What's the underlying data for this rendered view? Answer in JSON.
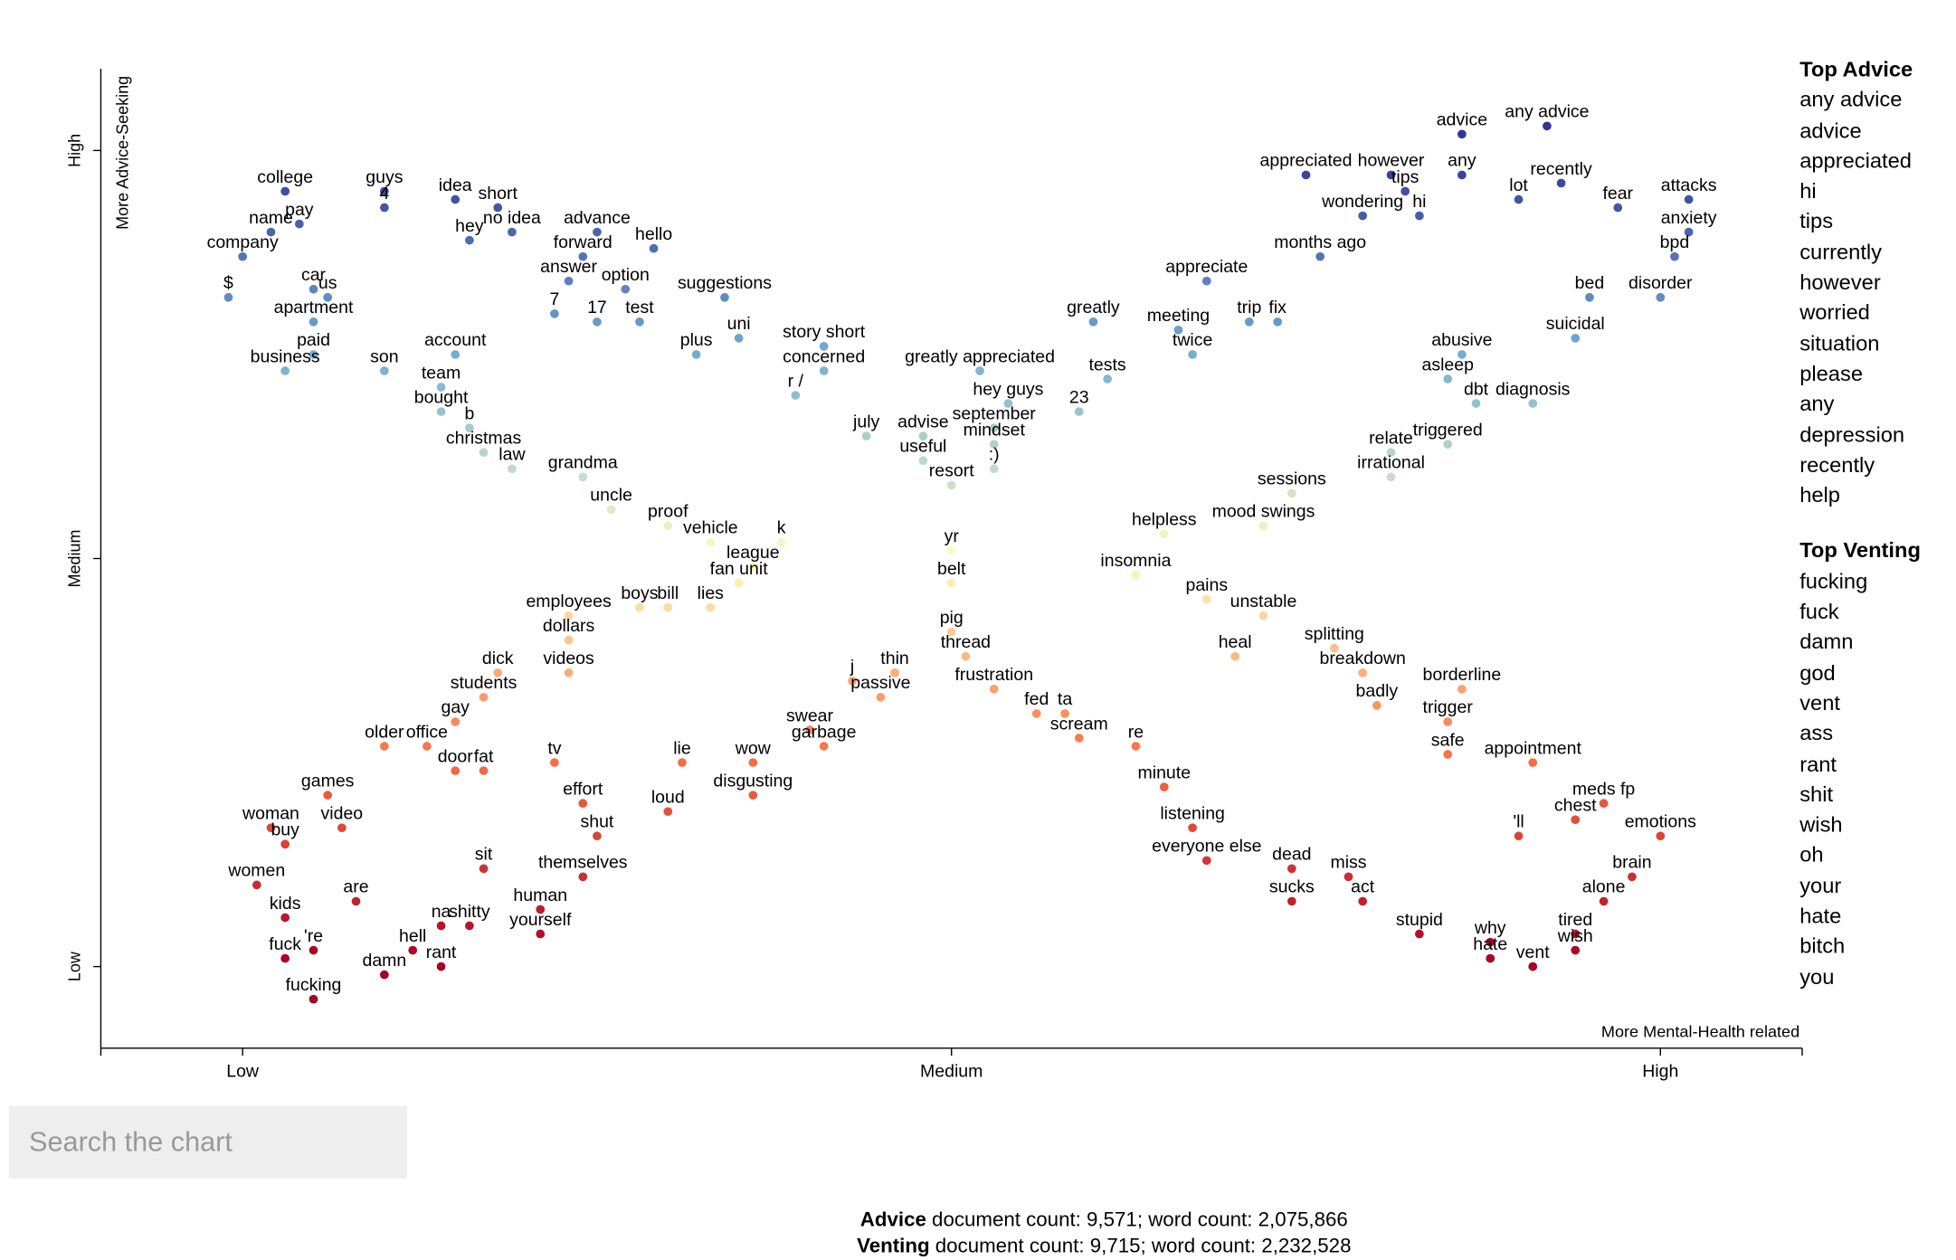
{
  "chart_data": {
    "type": "scatter",
    "y_label": "More Advice-Seeking",
    "x_label": "More Mental-Health related",
    "xlim": [
      -0.1,
      1.1
    ],
    "ylim": [
      -0.1,
      1.1
    ],
    "xticks": [
      {
        "value": 0,
        "label": "Low"
      },
      {
        "value": 0.5,
        "label": "Medium"
      },
      {
        "value": 1,
        "label": "High"
      }
    ],
    "yticks": [
      {
        "value": 0,
        "label": "Low"
      },
      {
        "value": 0.5,
        "label": "Medium"
      },
      {
        "value": 1,
        "label": "High"
      }
    ],
    "colors": [
      "#a50026",
      "#f46d43",
      "#ffffbf",
      "#74add1",
      "#313695"
    ],
    "points": [
      {
        "label": "college",
        "x": 0.03,
        "y": 0.95
      },
      {
        "label": "guys",
        "x": 0.1,
        "y": 0.95
      },
      {
        "label": "4",
        "x": 0.1,
        "y": 0.93
      },
      {
        "label": "idea",
        "x": 0.15,
        "y": 0.94
      },
      {
        "label": "short",
        "x": 0.18,
        "y": 0.93
      },
      {
        "label": "name",
        "x": 0.02,
        "y": 0.9
      },
      {
        "label": "pay",
        "x": 0.04,
        "y": 0.91
      },
      {
        "label": "no idea",
        "x": 0.19,
        "y": 0.9
      },
      {
        "label": "hey",
        "x": 0.16,
        "y": 0.89
      },
      {
        "label": "advance",
        "x": 0.25,
        "y": 0.9
      },
      {
        "label": "hello",
        "x": 0.29,
        "y": 0.88
      },
      {
        "label": "company",
        "x": 0.0,
        "y": 0.87
      },
      {
        "label": "forward",
        "x": 0.24,
        "y": 0.87
      },
      {
        "label": "$",
        "x": -0.01,
        "y": 0.82
      },
      {
        "label": "car",
        "x": 0.05,
        "y": 0.83
      },
      {
        "label": "us",
        "x": 0.06,
        "y": 0.82
      },
      {
        "label": "answer",
        "x": 0.23,
        "y": 0.84
      },
      {
        "label": "option",
        "x": 0.27,
        "y": 0.83
      },
      {
        "label": "suggestions",
        "x": 0.34,
        "y": 0.82
      },
      {
        "label": "7",
        "x": 0.22,
        "y": 0.8
      },
      {
        "label": "17",
        "x": 0.25,
        "y": 0.79
      },
      {
        "label": "test",
        "x": 0.28,
        "y": 0.79
      },
      {
        "label": "apartment",
        "x": 0.05,
        "y": 0.79
      },
      {
        "label": "paid",
        "x": 0.05,
        "y": 0.75
      },
      {
        "label": "account",
        "x": 0.15,
        "y": 0.75
      },
      {
        "label": "plus",
        "x": 0.32,
        "y": 0.75
      },
      {
        "label": "uni",
        "x": 0.35,
        "y": 0.77
      },
      {
        "label": "story short",
        "x": 0.41,
        "y": 0.76
      },
      {
        "label": "business",
        "x": 0.03,
        "y": 0.73
      },
      {
        "label": "son",
        "x": 0.1,
        "y": 0.73
      },
      {
        "label": "concerned",
        "x": 0.41,
        "y": 0.73
      },
      {
        "label": "team",
        "x": 0.14,
        "y": 0.71
      },
      {
        "label": "bought",
        "x": 0.14,
        "y": 0.68
      },
      {
        "label": "r /",
        "x": 0.39,
        "y": 0.7
      },
      {
        "label": "b",
        "x": 0.16,
        "y": 0.66
      },
      {
        "label": "christmas",
        "x": 0.17,
        "y": 0.63
      },
      {
        "label": "law",
        "x": 0.19,
        "y": 0.61
      },
      {
        "label": "grandma",
        "x": 0.24,
        "y": 0.6
      },
      {
        "label": "july",
        "x": 0.44,
        "y": 0.65
      },
      {
        "label": "advise",
        "x": 0.48,
        "y": 0.65
      },
      {
        "label": "useful",
        "x": 0.48,
        "y": 0.62
      },
      {
        "label": "uncle",
        "x": 0.26,
        "y": 0.56
      },
      {
        "label": "resort",
        "x": 0.5,
        "y": 0.59
      },
      {
        "label": "proof",
        "x": 0.3,
        "y": 0.54
      },
      {
        "label": "vehicle",
        "x": 0.33,
        "y": 0.52
      },
      {
        "label": "k",
        "x": 0.38,
        "y": 0.52
      },
      {
        "label": "yr",
        "x": 0.5,
        "y": 0.51
      },
      {
        "label": "league",
        "x": 0.36,
        "y": 0.49
      },
      {
        "label": "fan unit",
        "x": 0.35,
        "y": 0.47
      },
      {
        "label": "belt",
        "x": 0.5,
        "y": 0.47
      },
      {
        "label": "advice",
        "x": 0.86,
        "y": 1.02
      },
      {
        "label": "any advice",
        "x": 0.92,
        "y": 1.03
      },
      {
        "label": "appreciated",
        "x": 0.75,
        "y": 0.97
      },
      {
        "label": "however",
        "x": 0.81,
        "y": 0.97
      },
      {
        "label": "any",
        "x": 0.86,
        "y": 0.97
      },
      {
        "label": "recently",
        "x": 0.93,
        "y": 0.96
      },
      {
        "label": "tips",
        "x": 0.82,
        "y": 0.95
      },
      {
        "label": "lot",
        "x": 0.9,
        "y": 0.94
      },
      {
        "label": "attacks",
        "x": 1.02,
        "y": 0.94
      },
      {
        "label": "fear",
        "x": 0.97,
        "y": 0.93
      },
      {
        "label": "wondering",
        "x": 0.79,
        "y": 0.92
      },
      {
        "label": "hi",
        "x": 0.83,
        "y": 0.92
      },
      {
        "label": "anxiety",
        "x": 1.02,
        "y": 0.9
      },
      {
        "label": "months ago",
        "x": 0.76,
        "y": 0.87
      },
      {
        "label": "bpd",
        "x": 1.01,
        "y": 0.87
      },
      {
        "label": "appreciate",
        "x": 0.68,
        "y": 0.84
      },
      {
        "label": "disorder",
        "x": 1.0,
        "y": 0.82
      },
      {
        "label": "bed",
        "x": 0.95,
        "y": 0.82
      },
      {
        "label": "trip",
        "x": 0.71,
        "y": 0.79
      },
      {
        "label": "fix",
        "x": 0.73,
        "y": 0.79
      },
      {
        "label": "greatly",
        "x": 0.6,
        "y": 0.79
      },
      {
        "label": "meeting",
        "x": 0.66,
        "y": 0.78
      },
      {
        "label": "twice",
        "x": 0.67,
        "y": 0.75
      },
      {
        "label": "suicidal",
        "x": 0.94,
        "y": 0.77
      },
      {
        "label": "abusive",
        "x": 0.86,
        "y": 0.75
      },
      {
        "label": "greatly appreciated",
        "x": 0.52,
        "y": 0.73
      },
      {
        "label": "tests",
        "x": 0.61,
        "y": 0.72
      },
      {
        "label": "asleep",
        "x": 0.85,
        "y": 0.72
      },
      {
        "label": "hey guys",
        "x": 0.54,
        "y": 0.69
      },
      {
        "label": "dbt",
        "x": 0.87,
        "y": 0.69
      },
      {
        "label": "diagnosis",
        "x": 0.91,
        "y": 0.69
      },
      {
        "label": "september",
        "x": 0.53,
        "y": 0.66
      },
      {
        "label": "23",
        "x": 0.59,
        "y": 0.68
      },
      {
        "label": "mindset",
        "x": 0.53,
        "y": 0.64
      },
      {
        "label": "triggered",
        "x": 0.85,
        "y": 0.64
      },
      {
        "label": "relate",
        "x": 0.81,
        "y": 0.63
      },
      {
        "label": ":)",
        "x": 0.53,
        "y": 0.61
      },
      {
        "label": "irrational",
        "x": 0.81,
        "y": 0.6
      },
      {
        "label": "sessions",
        "x": 0.74,
        "y": 0.58
      },
      {
        "label": "mood swings",
        "x": 0.72,
        "y": 0.54
      },
      {
        "label": "helpless",
        "x": 0.65,
        "y": 0.53
      },
      {
        "label": "employees",
        "x": 0.23,
        "y": 0.43
      },
      {
        "label": "boys",
        "x": 0.28,
        "y": 0.44
      },
      {
        "label": "bill",
        "x": 0.3,
        "y": 0.44
      },
      {
        "label": "lies",
        "x": 0.33,
        "y": 0.44
      },
      {
        "label": "dollars",
        "x": 0.23,
        "y": 0.4
      },
      {
        "label": "videos",
        "x": 0.23,
        "y": 0.36
      },
      {
        "label": "dick",
        "x": 0.18,
        "y": 0.36
      },
      {
        "label": "j",
        "x": 0.43,
        "y": 0.35
      },
      {
        "label": "thin",
        "x": 0.46,
        "y": 0.36
      },
      {
        "label": "students",
        "x": 0.17,
        "y": 0.33
      },
      {
        "label": "passive",
        "x": 0.45,
        "y": 0.33
      },
      {
        "label": "gay",
        "x": 0.15,
        "y": 0.3
      },
      {
        "label": "swear",
        "x": 0.4,
        "y": 0.29
      },
      {
        "label": "garbage",
        "x": 0.41,
        "y": 0.27
      },
      {
        "label": "older",
        "x": 0.1,
        "y": 0.27
      },
      {
        "label": "office",
        "x": 0.13,
        "y": 0.27
      },
      {
        "label": "fat",
        "x": 0.17,
        "y": 0.24
      },
      {
        "label": "wow",
        "x": 0.36,
        "y": 0.25
      },
      {
        "label": "door",
        "x": 0.15,
        "y": 0.24
      },
      {
        "label": "tv",
        "x": 0.22,
        "y": 0.25
      },
      {
        "label": "lie",
        "x": 0.31,
        "y": 0.25
      },
      {
        "label": "games",
        "x": 0.06,
        "y": 0.21
      },
      {
        "label": "disgusting",
        "x": 0.36,
        "y": 0.21
      },
      {
        "label": "effort",
        "x": 0.24,
        "y": 0.2
      },
      {
        "label": "loud",
        "x": 0.3,
        "y": 0.19
      },
      {
        "label": "woman",
        "x": 0.02,
        "y": 0.17
      },
      {
        "label": "video",
        "x": 0.07,
        "y": 0.17
      },
      {
        "label": "shut",
        "x": 0.25,
        "y": 0.16
      },
      {
        "label": "buy",
        "x": 0.03,
        "y": 0.15
      },
      {
        "label": "sit",
        "x": 0.17,
        "y": 0.12
      },
      {
        "label": "themselves",
        "x": 0.24,
        "y": 0.11
      },
      {
        "label": "women",
        "x": 0.01,
        "y": 0.1
      },
      {
        "label": "are",
        "x": 0.08,
        "y": 0.08
      },
      {
        "label": "human",
        "x": 0.21,
        "y": 0.07
      },
      {
        "label": "kids",
        "x": 0.03,
        "y": 0.06
      },
      {
        "label": "na",
        "x": 0.14,
        "y": 0.05
      },
      {
        "label": "shitty",
        "x": 0.16,
        "y": 0.05
      },
      {
        "label": "yourself",
        "x": 0.21,
        "y": 0.04
      },
      {
        "label": "hell",
        "x": 0.12,
        "y": 0.02
      },
      {
        "label": "'re",
        "x": 0.05,
        "y": 0.02
      },
      {
        "label": "fuck",
        "x": 0.03,
        "y": 0.01
      },
      {
        "label": "rant",
        "x": 0.14,
        "y": 0.0
      },
      {
        "label": "damn",
        "x": 0.1,
        "y": -0.01
      },
      {
        "label": "fucking",
        "x": 0.05,
        "y": -0.04
      },
      {
        "label": "insomnia",
        "x": 0.63,
        "y": 0.48
      },
      {
        "label": "pains",
        "x": 0.68,
        "y": 0.45
      },
      {
        "label": "unstable",
        "x": 0.72,
        "y": 0.43
      },
      {
        "label": "pig",
        "x": 0.5,
        "y": 0.41
      },
      {
        "label": "thread",
        "x": 0.51,
        "y": 0.38
      },
      {
        "label": "heal",
        "x": 0.7,
        "y": 0.38
      },
      {
        "label": "splitting",
        "x": 0.77,
        "y": 0.39
      },
      {
        "label": "breakdown",
        "x": 0.79,
        "y": 0.36
      },
      {
        "label": "frustration",
        "x": 0.53,
        "y": 0.34
      },
      {
        "label": "borderline",
        "x": 0.86,
        "y": 0.34
      },
      {
        "label": "fed",
        "x": 0.56,
        "y": 0.31
      },
      {
        "label": "ta",
        "x": 0.58,
        "y": 0.31
      },
      {
        "label": "badly",
        "x": 0.8,
        "y": 0.32
      },
      {
        "label": "trigger",
        "x": 0.85,
        "y": 0.3
      },
      {
        "label": "scream",
        "x": 0.59,
        "y": 0.28
      },
      {
        "label": "re",
        "x": 0.63,
        "y": 0.27
      },
      {
        "label": "safe",
        "x": 0.85,
        "y": 0.26
      },
      {
        "label": "appointment",
        "x": 0.91,
        "y": 0.25
      },
      {
        "label": "minute",
        "x": 0.65,
        "y": 0.22
      },
      {
        "label": "meds fp",
        "x": 0.96,
        "y": 0.2
      },
      {
        "label": "listening",
        "x": 0.67,
        "y": 0.17
      },
      {
        "label": "chest",
        "x": 0.94,
        "y": 0.18
      },
      {
        "label": "emotions",
        "x": 1.0,
        "y": 0.16
      },
      {
        "label": "'ll",
        "x": 0.9,
        "y": 0.16
      },
      {
        "label": "everyone else",
        "x": 0.68,
        "y": 0.13
      },
      {
        "label": "dead",
        "x": 0.74,
        "y": 0.12
      },
      {
        "label": "miss",
        "x": 0.78,
        "y": 0.11
      },
      {
        "label": "brain",
        "x": 0.98,
        "y": 0.11
      },
      {
        "label": "sucks",
        "x": 0.74,
        "y": 0.08
      },
      {
        "label": "act",
        "x": 0.79,
        "y": 0.08
      },
      {
        "label": "alone",
        "x": 0.96,
        "y": 0.08
      },
      {
        "label": "stupid",
        "x": 0.83,
        "y": 0.04
      },
      {
        "label": "tired",
        "x": 0.94,
        "y": 0.04
      },
      {
        "label": "why",
        "x": 0.88,
        "y": 0.03
      },
      {
        "label": "wish",
        "x": 0.94,
        "y": 0.02
      },
      {
        "label": "hate",
        "x": 0.88,
        "y": 0.01
      },
      {
        "label": "vent",
        "x": 0.91,
        "y": 0.0
      }
    ]
  },
  "sidebar": [
    {
      "title": "Top Advice",
      "terms": [
        "any advice",
        "advice",
        "appreciated",
        "hi",
        "tips",
        "currently",
        "however",
        "worried",
        "situation",
        "please",
        "any",
        "depression",
        "recently",
        "help"
      ]
    },
    {
      "title": "Top Venting",
      "terms": [
        "fucking",
        "fuck",
        "damn",
        "god",
        "vent",
        "ass",
        "rant",
        "shit",
        "wish",
        "oh",
        "your",
        "hate",
        "bitch",
        "you"
      ]
    }
  ],
  "search": {
    "placeholder": "Search the chart"
  },
  "footer": [
    {
      "category": "Advice",
      "text": "document count: 9,571; word count: 2,075,866"
    },
    {
      "category": "Venting",
      "text": "document count: 9,715; word count: 2,232,528"
    }
  ]
}
